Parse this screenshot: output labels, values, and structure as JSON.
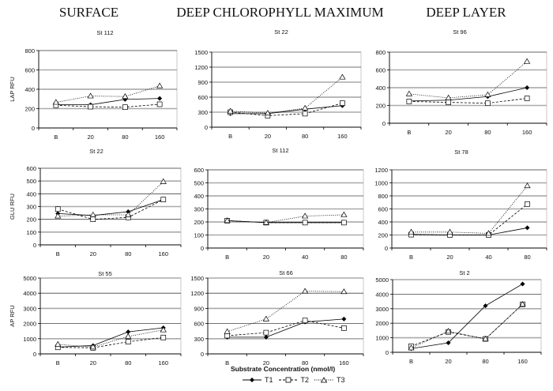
{
  "column_headers": [
    "SURFACE",
    "DEEP CHLOROPHYLL MAXIMUM",
    "DEEP LAYER"
  ],
  "shared_xlabel": "Substrate Concentration (nmol/l)",
  "legend": [
    {
      "name": "T1",
      "marker": "filled-diamond",
      "line": "solid"
    },
    {
      "name": "T2",
      "marker": "open-square",
      "line": "dashed"
    },
    {
      "name": "T3",
      "marker": "open-triangle",
      "line": "dotted"
    }
  ],
  "chart_data": [
    {
      "type": "line",
      "title": "St 112",
      "ylabel": "LAP RFU",
      "categories": [
        "B",
        "20",
        "80",
        "160"
      ],
      "ylim": [
        0,
        800
      ],
      "yticks": [
        0,
        200,
        400,
        600,
        800
      ],
      "series": [
        {
          "name": "T1",
          "values": [
            240,
            240,
            295,
            305
          ]
        },
        {
          "name": "T2",
          "values": [
            235,
            220,
            215,
            245
          ]
        },
        {
          "name": "T3",
          "values": [
            265,
            330,
            325,
            435
          ]
        }
      ]
    },
    {
      "type": "line",
      "title": "St 22",
      "ylabel": "",
      "categories": [
        "B",
        "20",
        "80",
        "160"
      ],
      "ylim": [
        0,
        1500
      ],
      "yticks": [
        0,
        300,
        600,
        900,
        1200,
        1500
      ],
      "series": [
        {
          "name": "T1",
          "values": [
            270,
            270,
            360,
            430
          ]
        },
        {
          "name": "T2",
          "values": [
            300,
            230,
            270,
            480
          ]
        },
        {
          "name": "T3",
          "values": [
            320,
            280,
            380,
            1000
          ]
        }
      ]
    },
    {
      "type": "line",
      "title": "St 96",
      "ylabel": "",
      "categories": [
        "B",
        "20",
        "80",
        "160"
      ],
      "ylim": [
        0,
        800
      ],
      "yticks": [
        0,
        200,
        400,
        600,
        800
      ],
      "series": [
        {
          "name": "T1",
          "values": [
            250,
            260,
            300,
            400
          ]
        },
        {
          "name": "T2",
          "values": [
            245,
            235,
            225,
            280
          ]
        },
        {
          "name": "T3",
          "values": [
            330,
            285,
            320,
            695
          ]
        }
      ]
    },
    {
      "type": "line",
      "title": "St 22",
      "ylabel": "GLU RFU",
      "categories": [
        "B",
        "20",
        "80",
        "160"
      ],
      "ylim": [
        0,
        600
      ],
      "yticks": [
        0,
        100,
        200,
        300,
        400,
        500,
        600
      ],
      "series": [
        {
          "name": "T1",
          "values": [
            245,
            230,
            260,
            355
          ]
        },
        {
          "name": "T2",
          "values": [
            280,
            200,
            215,
            355
          ]
        },
        {
          "name": "T3",
          "values": [
            225,
            235,
            235,
            495
          ]
        }
      ]
    },
    {
      "type": "line",
      "title": "St 112",
      "ylabel": "",
      "categories": [
        "B",
        "20",
        "40",
        "80"
      ],
      "ylim": [
        0,
        600
      ],
      "yticks": [
        0,
        100,
        200,
        300,
        400,
        500,
        600
      ],
      "series": [
        {
          "name": "T1",
          "values": [
            210,
            195,
            195,
            195
          ]
        },
        {
          "name": "T2",
          "values": [
            210,
            195,
            195,
            195
          ]
        },
        {
          "name": "T3",
          "values": [
            210,
            195,
            245,
            255
          ]
        }
      ]
    },
    {
      "type": "line",
      "title": "St  78",
      "ylabel": "",
      "categories": [
        "B",
        "20",
        "40",
        "80"
      ],
      "ylim": [
        0,
        1200
      ],
      "yticks": [
        0,
        200,
        400,
        600,
        800,
        1000,
        1200
      ],
      "series": [
        {
          "name": "T1",
          "values": [
            210,
            200,
            200,
            310
          ]
        },
        {
          "name": "T2",
          "values": [
            205,
            200,
            200,
            675
          ]
        },
        {
          "name": "T3",
          "values": [
            245,
            245,
            225,
            955
          ]
        }
      ]
    },
    {
      "type": "line",
      "title": "St 55",
      "ylabel": "AP RFU",
      "categories": [
        "B",
        "20",
        "80",
        "160"
      ],
      "ylim": [
        0,
        5000
      ],
      "yticks": [
        0,
        1000,
        2000,
        3000,
        4000,
        5000
      ],
      "series": [
        {
          "name": "T1",
          "values": [
            450,
            550,
            1450,
            1720
          ]
        },
        {
          "name": "T2",
          "values": [
            430,
            400,
            800,
            1080
          ]
        },
        {
          "name": "T3",
          "values": [
            630,
            450,
            1150,
            1580
          ]
        }
      ]
    },
    {
      "type": "line",
      "title": "St 66",
      "ylabel": "",
      "categories": [
        "B",
        "20",
        "80",
        "160"
      ],
      "ylim": [
        0,
        1500
      ],
      "yticks": [
        0,
        300,
        600,
        900,
        1200,
        1500
      ],
      "series": [
        {
          "name": "T1",
          "values": [
            330,
            330,
            630,
            690
          ]
        },
        {
          "name": "T2",
          "values": [
            360,
            420,
            660,
            510
          ]
        },
        {
          "name": "T3",
          "values": [
            440,
            690,
            1240,
            1230
          ]
        }
      ]
    },
    {
      "type": "line",
      "title": "St 2",
      "ylabel": "",
      "categories": [
        "B",
        "20",
        "80",
        "160"
      ],
      "ylim": [
        0,
        5000
      ],
      "yticks": [
        0,
        1000,
        2000,
        3000,
        4000,
        5000
      ],
      "series": [
        {
          "name": "T1",
          "values": [
            250,
            650,
            3200,
            4700
          ]
        },
        {
          "name": "T2",
          "values": [
            420,
            1400,
            920,
            3300
          ]
        },
        {
          "name": "T3",
          "values": [
            300,
            1450,
            920,
            3300
          ]
        }
      ]
    }
  ]
}
